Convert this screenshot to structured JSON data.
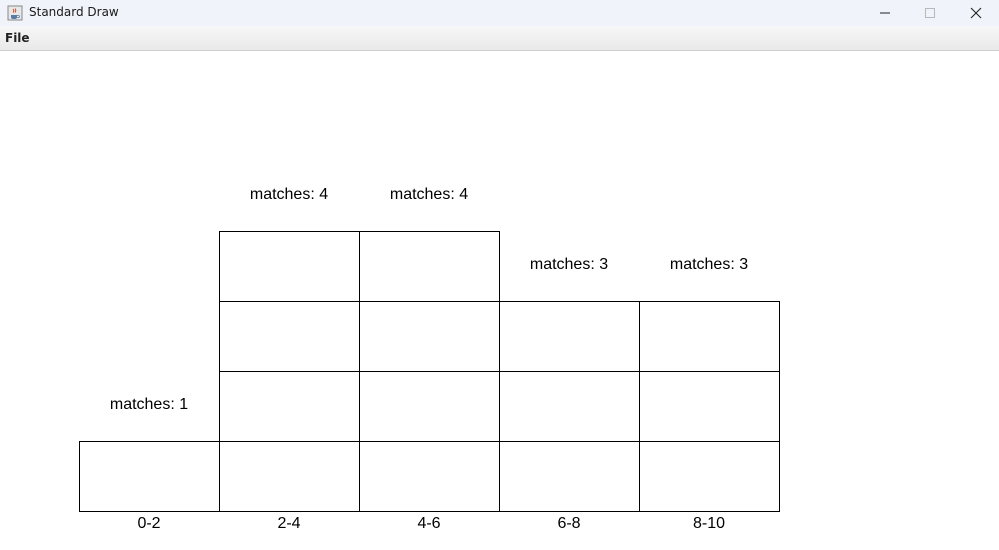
{
  "window": {
    "title": "Standard Draw",
    "icons": {
      "app": "java-cup-icon",
      "minimize": "minimize-icon",
      "maximize": "maximize-icon",
      "close": "close-icon"
    }
  },
  "menu": {
    "file": "File"
  },
  "columns": [
    {
      "range": "0-2",
      "matches_label": "matches: 1",
      "count": 1
    },
    {
      "range": "2-4",
      "matches_label": "matches: 4",
      "count": 4
    },
    {
      "range": "4-6",
      "matches_label": "matches: 4",
      "count": 4
    },
    {
      "range": "6-8",
      "matches_label": "matches: 3",
      "count": 3
    },
    {
      "range": "8-10",
      "matches_label": "matches: 3",
      "count": 3
    }
  ]
}
